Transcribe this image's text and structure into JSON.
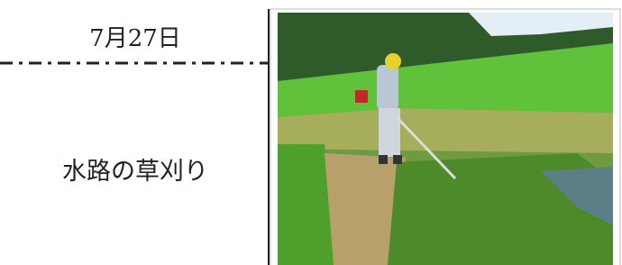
{
  "date": "7月27日",
  "caption": "水路の草刈り"
}
